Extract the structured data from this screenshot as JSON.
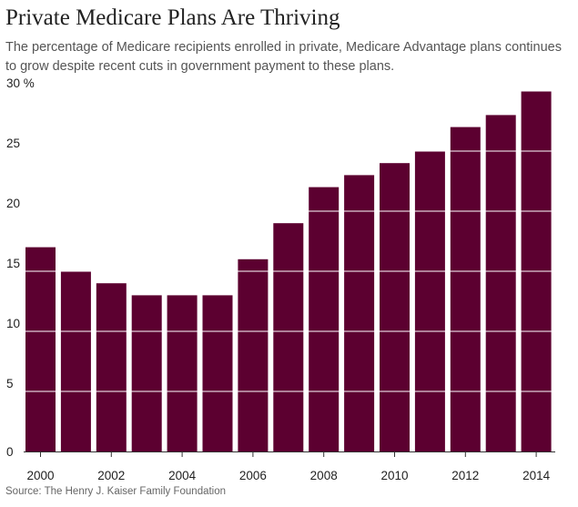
{
  "colors": {
    "bar": "#5c0030",
    "gridline": "#ffffff",
    "axis": "#333333"
  },
  "chart_data": {
    "type": "bar",
    "title": "Private Medicare Plans Are Thriving",
    "subtitle": "The percentage of Medicare recipients enrolled in private, Medicare Advantage plans continues to grow despite recent cuts in government payment to these plans.",
    "xlabel": "",
    "ylabel": "",
    "categories": [
      "2000",
      "2001",
      "2002",
      "2003",
      "2004",
      "2005",
      "2006",
      "2007",
      "2008",
      "2009",
      "2010",
      "2011",
      "2012",
      "2013",
      "2014"
    ],
    "values": [
      17,
      15,
      14,
      13,
      13,
      13,
      16,
      19,
      22,
      23,
      24,
      25,
      27,
      28,
      30
    ],
    "ylim": [
      0,
      30
    ],
    "y_ticks": [
      0,
      5,
      10,
      15,
      20,
      25,
      30
    ],
    "y_tick_labels": [
      "0",
      "5",
      "10",
      "15",
      "20",
      "25",
      "30 %"
    ],
    "x_tick_labels": [
      "2000",
      "2002",
      "2004",
      "2006",
      "2008",
      "2010",
      "2012",
      "2014"
    ],
    "grid": true,
    "grid_style": "white horizontal lines drawn over the bars",
    "legend": "none",
    "source": "Source: The Henry J. Kaiser Family Foundation"
  }
}
